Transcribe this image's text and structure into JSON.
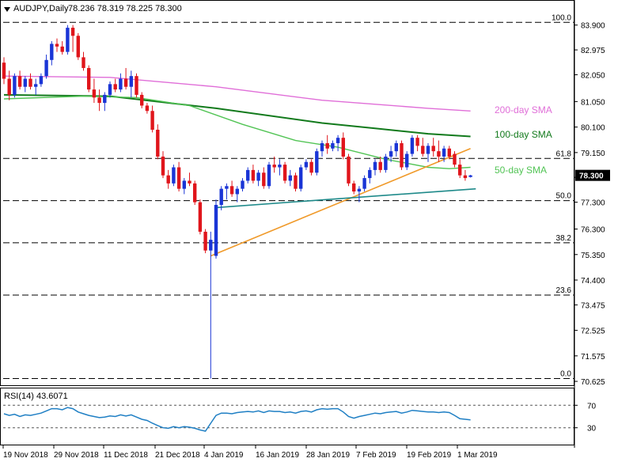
{
  "header": {
    "symbol_label": "AUDJPY,Daily",
    "ohlc": "78.236 78.319 78.225 78.300"
  },
  "rsi_label": "RSI(14) 43.6071",
  "colors": {
    "bull": "#1a35d6",
    "bear": "#e0151b",
    "sma50": "#52c455",
    "sma100": "#127a1c",
    "sma200": "#e06ed8",
    "trend_orange": "#f09a2a",
    "trend_teal": "#1f8a8a",
    "rsi_line": "#1f7fc4",
    "price_badge": "#000000"
  },
  "chart_data": [
    {
      "type": "candlestick",
      "title": "AUDJPY,Daily",
      "y_ticks": [
        "83.900",
        "82.975",
        "82.050",
        "81.050",
        "80.100",
        "79.150",
        "78.225",
        "77.300",
        "76.300",
        "75.350",
        "74.400",
        "73.475",
        "72.525",
        "71.575",
        "70.625"
      ],
      "ylim": [
        70.625,
        84.0
      ],
      "x_ticks": [
        "19 Nov 2018",
        "29 Nov 2018",
        "11 Dec 2018",
        "21 Dec 2018",
        "4 Jan 2019",
        "16 Jan 2019",
        "28 Jan 2019",
        "7 Feb 2019",
        "19 Feb 2019",
        "1 Mar 2019"
      ],
      "last_price": "78.300",
      "fib_levels": [
        {
          "label": "100.0",
          "value": 84.0
        },
        {
          "label": "61.8",
          "value": 78.93
        },
        {
          "label": "50.0",
          "value": 77.36
        },
        {
          "label": "38.2",
          "value": 75.79
        },
        {
          "label": "23.6",
          "value": 73.84
        },
        {
          "label": "0.0",
          "value": 70.73
        }
      ],
      "candles": [
        {
          "o": 82.5,
          "h": 82.7,
          "l": 81.7,
          "c": 81.9
        },
        {
          "o": 81.9,
          "h": 82.2,
          "l": 81.1,
          "c": 81.3
        },
        {
          "o": 81.3,
          "h": 82.1,
          "l": 81.2,
          "c": 82.0
        },
        {
          "o": 82.0,
          "h": 82.2,
          "l": 81.5,
          "c": 81.6
        },
        {
          "o": 81.6,
          "h": 82.0,
          "l": 81.4,
          "c": 81.9
        },
        {
          "o": 81.9,
          "h": 82.1,
          "l": 81.5,
          "c": 81.6
        },
        {
          "o": 81.6,
          "h": 81.9,
          "l": 81.3,
          "c": 81.7
        },
        {
          "o": 81.7,
          "h": 82.1,
          "l": 81.6,
          "c": 82.0
        },
        {
          "o": 82.0,
          "h": 82.8,
          "l": 81.9,
          "c": 82.6
        },
        {
          "o": 82.6,
          "h": 83.3,
          "l": 82.4,
          "c": 83.2
        },
        {
          "o": 83.2,
          "h": 83.4,
          "l": 82.9,
          "c": 83.1
        },
        {
          "o": 83.1,
          "h": 83.3,
          "l": 82.8,
          "c": 82.9
        },
        {
          "o": 82.9,
          "h": 83.9,
          "l": 82.8,
          "c": 83.8
        },
        {
          "o": 83.8,
          "h": 83.9,
          "l": 82.9,
          "c": 83.5
        },
        {
          "o": 83.5,
          "h": 83.6,
          "l": 82.6,
          "c": 82.7
        },
        {
          "o": 82.7,
          "h": 82.9,
          "l": 82.2,
          "c": 82.3
        },
        {
          "o": 82.3,
          "h": 82.4,
          "l": 81.4,
          "c": 81.5
        },
        {
          "o": 81.5,
          "h": 81.9,
          "l": 81.0,
          "c": 81.2
        },
        {
          "o": 81.2,
          "h": 81.5,
          "l": 80.7,
          "c": 81.0
        },
        {
          "o": 81.0,
          "h": 81.4,
          "l": 80.7,
          "c": 81.3
        },
        {
          "o": 81.3,
          "h": 81.8,
          "l": 81.2,
          "c": 81.7
        },
        {
          "o": 81.7,
          "h": 81.9,
          "l": 81.4,
          "c": 81.5
        },
        {
          "o": 81.5,
          "h": 82.1,
          "l": 81.4,
          "c": 81.9
        },
        {
          "o": 81.9,
          "h": 82.3,
          "l": 81.5,
          "c": 81.6
        },
        {
          "o": 81.6,
          "h": 82.2,
          "l": 81.2,
          "c": 82.0
        },
        {
          "o": 82.0,
          "h": 82.1,
          "l": 81.2,
          "c": 81.3
        },
        {
          "o": 81.3,
          "h": 81.4,
          "l": 80.8,
          "c": 80.9
        },
        {
          "o": 80.9,
          "h": 81.0,
          "l": 80.6,
          "c": 80.7
        },
        {
          "o": 80.7,
          "h": 80.9,
          "l": 79.9,
          "c": 80.0
        },
        {
          "o": 80.0,
          "h": 80.2,
          "l": 78.9,
          "c": 79.0
        },
        {
          "o": 79.0,
          "h": 79.2,
          "l": 78.2,
          "c": 78.3
        },
        {
          "o": 78.3,
          "h": 78.5,
          "l": 77.8,
          "c": 78.0
        },
        {
          "o": 78.0,
          "h": 78.7,
          "l": 77.9,
          "c": 78.6
        },
        {
          "o": 78.6,
          "h": 78.8,
          "l": 77.7,
          "c": 77.8
        },
        {
          "o": 77.8,
          "h": 78.2,
          "l": 77.6,
          "c": 78.1
        },
        {
          "o": 78.1,
          "h": 78.4,
          "l": 77.9,
          "c": 78.0
        },
        {
          "o": 78.0,
          "h": 78.1,
          "l": 77.2,
          "c": 77.3
        },
        {
          "o": 77.3,
          "h": 77.4,
          "l": 76.1,
          "c": 76.2
        },
        {
          "o": 76.2,
          "h": 76.3,
          "l": 75.4,
          "c": 75.5
        },
        {
          "o": 75.5,
          "h": 76.2,
          "l": 70.73,
          "c": 75.9
        },
        {
          "o": 75.3,
          "h": 77.4,
          "l": 75.2,
          "c": 77.2
        },
        {
          "o": 77.2,
          "h": 77.9,
          "l": 77.0,
          "c": 77.8
        },
        {
          "o": 77.8,
          "h": 78.0,
          "l": 77.4,
          "c": 77.9
        },
        {
          "o": 77.9,
          "h": 78.1,
          "l": 77.5,
          "c": 77.6
        },
        {
          "o": 77.6,
          "h": 77.9,
          "l": 77.3,
          "c": 77.8
        },
        {
          "o": 77.8,
          "h": 78.2,
          "l": 77.7,
          "c": 78.1
        },
        {
          "o": 78.1,
          "h": 78.6,
          "l": 78.0,
          "c": 78.5
        },
        {
          "o": 78.5,
          "h": 78.7,
          "l": 78.0,
          "c": 78.1
        },
        {
          "o": 78.1,
          "h": 78.5,
          "l": 77.9,
          "c": 78.4
        },
        {
          "o": 78.4,
          "h": 78.6,
          "l": 77.8,
          "c": 77.9
        },
        {
          "o": 77.9,
          "h": 78.8,
          "l": 77.8,
          "c": 78.7
        },
        {
          "o": 78.7,
          "h": 79.0,
          "l": 78.4,
          "c": 78.6
        },
        {
          "o": 78.6,
          "h": 78.9,
          "l": 78.3,
          "c": 78.7
        },
        {
          "o": 78.7,
          "h": 78.8,
          "l": 78.0,
          "c": 78.1
        },
        {
          "o": 78.1,
          "h": 78.5,
          "l": 77.9,
          "c": 78.3
        },
        {
          "o": 78.3,
          "h": 78.4,
          "l": 77.7,
          "c": 77.8
        },
        {
          "o": 77.8,
          "h": 78.7,
          "l": 77.7,
          "c": 78.6
        },
        {
          "o": 78.6,
          "h": 78.9,
          "l": 78.5,
          "c": 78.8
        },
        {
          "o": 78.8,
          "h": 78.9,
          "l": 78.3,
          "c": 78.4
        },
        {
          "o": 78.4,
          "h": 79.3,
          "l": 78.3,
          "c": 79.2
        },
        {
          "o": 79.2,
          "h": 79.6,
          "l": 79.0,
          "c": 79.5
        },
        {
          "o": 79.5,
          "h": 79.8,
          "l": 79.1,
          "c": 79.3
        },
        {
          "o": 79.3,
          "h": 79.6,
          "l": 79.2,
          "c": 79.5
        },
        {
          "o": 79.5,
          "h": 79.8,
          "l": 79.2,
          "c": 79.7
        },
        {
          "o": 79.7,
          "h": 79.9,
          "l": 78.9,
          "c": 79.0
        },
        {
          "o": 79.0,
          "h": 79.1,
          "l": 77.9,
          "c": 78.0
        },
        {
          "o": 78.0,
          "h": 78.1,
          "l": 77.6,
          "c": 77.7
        },
        {
          "o": 77.7,
          "h": 77.9,
          "l": 77.3,
          "c": 77.8
        },
        {
          "o": 77.8,
          "h": 78.3,
          "l": 77.7,
          "c": 78.2
        },
        {
          "o": 78.2,
          "h": 78.6,
          "l": 78.0,
          "c": 78.5
        },
        {
          "o": 78.5,
          "h": 78.9,
          "l": 78.3,
          "c": 78.8
        },
        {
          "o": 78.8,
          "h": 79.0,
          "l": 78.4,
          "c": 78.5
        },
        {
          "o": 78.5,
          "h": 79.1,
          "l": 78.4,
          "c": 79.0
        },
        {
          "o": 79.0,
          "h": 79.4,
          "l": 78.8,
          "c": 79.2
        },
        {
          "o": 79.2,
          "h": 79.6,
          "l": 79.0,
          "c": 79.5
        },
        {
          "o": 79.5,
          "h": 79.6,
          "l": 78.5,
          "c": 78.6
        },
        {
          "o": 78.6,
          "h": 79.2,
          "l": 78.5,
          "c": 79.1
        },
        {
          "o": 79.1,
          "h": 79.8,
          "l": 79.0,
          "c": 79.7
        },
        {
          "o": 79.7,
          "h": 79.8,
          "l": 79.2,
          "c": 79.4
        },
        {
          "o": 79.4,
          "h": 79.7,
          "l": 79.0,
          "c": 79.1
        },
        {
          "o": 79.1,
          "h": 79.5,
          "l": 78.8,
          "c": 79.4
        },
        {
          "o": 79.4,
          "h": 79.7,
          "l": 79.0,
          "c": 79.2
        },
        {
          "o": 79.2,
          "h": 79.6,
          "l": 78.8,
          "c": 79.0
        },
        {
          "o": 79.0,
          "h": 79.4,
          "l": 78.8,
          "c": 79.3
        },
        {
          "o": 79.3,
          "h": 79.4,
          "l": 78.9,
          "c": 79.0
        },
        {
          "o": 79.1,
          "h": 79.2,
          "l": 78.6,
          "c": 78.7
        },
        {
          "o": 78.7,
          "h": 78.9,
          "l": 78.2,
          "c": 78.3
        },
        {
          "o": 78.3,
          "h": 78.5,
          "l": 78.1,
          "c": 78.2
        },
        {
          "o": 78.24,
          "h": 78.32,
          "l": 78.22,
          "c": 78.3
        }
      ],
      "series": [
        {
          "name": "200-day SMA",
          "values": [
            [
              0,
              82.0
            ],
            [
              20,
              81.95
            ],
            [
              40,
              81.6
            ],
            [
              60,
              81.1
            ],
            [
              80,
              80.8
            ],
            [
              88,
              80.7
            ]
          ]
        },
        {
          "name": "100-day SMA",
          "values": [
            [
              0,
              81.3
            ],
            [
              20,
              81.25
            ],
            [
              40,
              80.8
            ],
            [
              60,
              80.25
            ],
            [
              70,
              80.05
            ],
            [
              80,
              79.85
            ],
            [
              88,
              79.75
            ]
          ]
        },
        {
          "name": "50-day SMA",
          "values": [
            [
              0,
              81.15
            ],
            [
              15,
              81.25
            ],
            [
              25,
              81.2
            ],
            [
              35,
              80.9
            ],
            [
              45,
              80.2
            ],
            [
              55,
              79.6
            ],
            [
              63,
              79.35
            ],
            [
              72,
              78.9
            ],
            [
              80,
              78.6
            ],
            [
              84,
              78.55
            ],
            [
              88,
              78.6
            ]
          ]
        }
      ],
      "trendlines": [
        {
          "name": "support-orange",
          "from": [
            39,
            75.3
          ],
          "to": [
            88,
            79.3
          ]
        },
        {
          "name": "support-teal",
          "from": [
            40,
            77.1
          ],
          "to": [
            89,
            77.8
          ]
        }
      ]
    },
    {
      "type": "line",
      "title": "RSI(14) 43.6071",
      "y_ticks": [
        "70",
        "30"
      ],
      "ylim": [
        0,
        100
      ],
      "values": [
        55,
        52,
        54,
        50,
        53,
        52,
        54,
        56,
        60,
        64,
        64,
        62,
        66,
        64,
        58,
        55,
        52,
        50,
        48,
        49,
        51,
        50,
        53,
        51,
        53,
        49,
        45,
        43,
        38,
        34,
        30,
        29,
        32,
        30,
        32,
        31,
        29,
        26,
        24,
        38,
        52,
        56,
        56,
        55,
        57,
        58,
        59,
        58,
        60,
        57,
        60,
        59,
        59,
        57,
        58,
        56,
        59,
        60,
        58,
        62,
        64,
        63,
        64,
        64,
        58,
        50,
        47,
        50,
        52,
        54,
        56,
        55,
        57,
        58,
        59,
        56,
        58,
        61,
        60,
        59,
        58,
        58,
        57,
        58,
        57,
        52,
        46,
        45,
        44
      ]
    }
  ]
}
